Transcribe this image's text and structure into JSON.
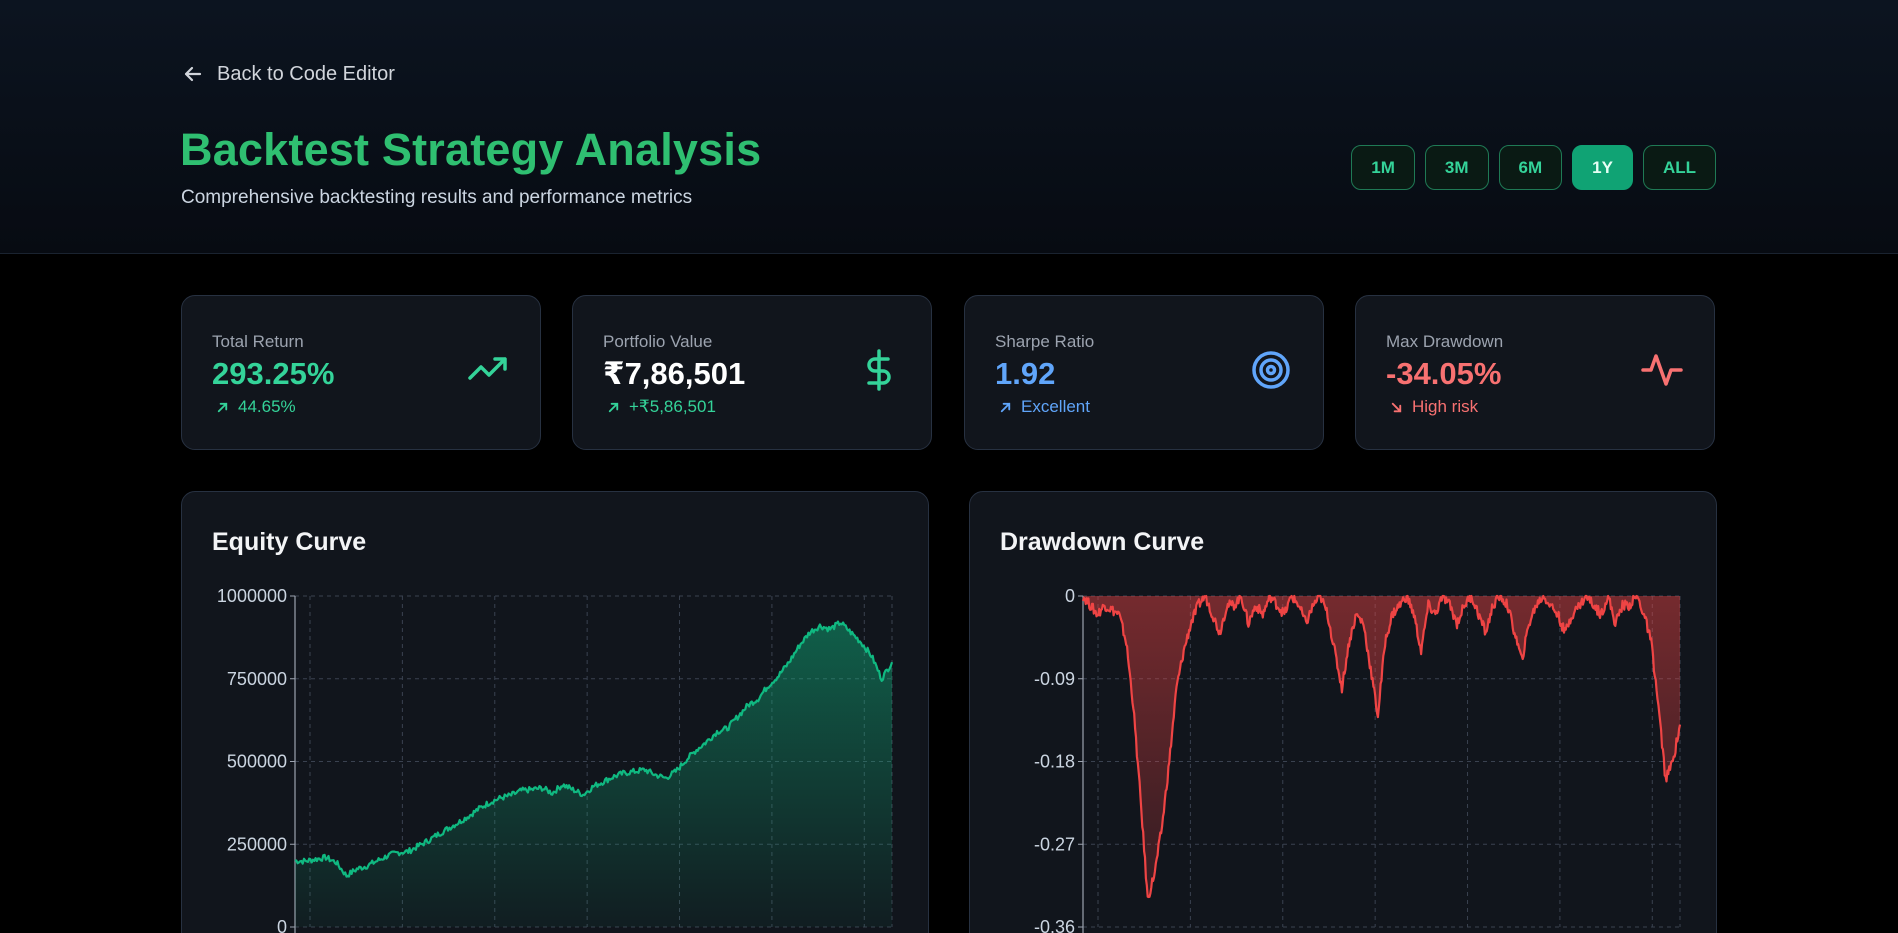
{
  "header": {
    "back_label": "Back to Code Editor",
    "title": "Backtest Strategy Analysis",
    "subtitle": "Comprehensive backtesting results and performance metrics",
    "ranges": [
      "1M",
      "3M",
      "6M",
      "1Y",
      "ALL"
    ],
    "active_range": "1Y"
  },
  "metrics": [
    {
      "label": "Total Return",
      "value": "293.25%",
      "sub": "44.65%",
      "icon": "trending-up-icon",
      "color": "#34d399"
    },
    {
      "label": "Portfolio Value",
      "value": "₹7,86,501",
      "sub": "+₹5,86,501",
      "icon": "dollar-sign-icon",
      "color": "#34d399"
    },
    {
      "label": "Sharpe Ratio",
      "value": "1.92",
      "sub": "Excellent",
      "icon": "target-icon",
      "color": "#60a5fa"
    },
    {
      "label": "Max Drawdown",
      "value": "-34.05%",
      "sub": "High risk",
      "icon": "activity-icon",
      "color": "#f87171"
    }
  ],
  "chart_data": [
    {
      "type": "area",
      "title": "Equity Curve",
      "ylim": [
        0,
        1000000
      ],
      "yticks": [
        "1000000",
        "750000",
        "500000",
        "250000",
        "0"
      ],
      "grid": true,
      "color": "#10b981",
      "series": [
        {
          "values": [
            200000,
            199000,
            205000,
            210000,
            195000,
            155000,
            175000,
            185000,
            200000,
            215000,
            225000,
            228000,
            245000,
            262000,
            282000,
            300000,
            318000,
            338000,
            360000,
            378000,
            390000,
            398000,
            412000,
            415000,
            420000,
            405000,
            430000,
            415000,
            400000,
            425000,
            440000,
            455000,
            465000,
            470000,
            475000,
            460000,
            450000,
            470000,
            505000,
            535000,
            560000,
            590000,
            600000,
            635000,
            670000,
            690000,
            730000,
            760000,
            800000,
            850000,
            890000,
            910000,
            900000,
            920000,
            890000,
            860000,
            820000,
            750000,
            800000
          ]
        }
      ]
    },
    {
      "type": "area",
      "title": "Drawdown Curve",
      "ylim": [
        -0.36,
        0
      ],
      "yticks": [
        "0",
        "-0.09",
        "-0.18",
        "-0.27",
        "-0.36"
      ],
      "grid": true,
      "color": "#ef4444",
      "series": [
        {
          "values": [
            0,
            -0.01,
            -0.02,
            -0.01,
            -0.015,
            -0.02,
            -0.05,
            -0.12,
            -0.22,
            -0.33,
            -0.3,
            -0.25,
            -0.18,
            -0.1,
            -0.06,
            -0.03,
            -0.01,
            0,
            -0.02,
            -0.04,
            -0.01,
            -0.01,
            0,
            -0.03,
            -0.01,
            -0.02,
            0,
            -0.01,
            -0.02,
            0,
            -0.01,
            -0.03,
            -0.01,
            0,
            -0.02,
            -0.06,
            -0.1,
            -0.05,
            -0.02,
            -0.03,
            -0.08,
            -0.13,
            -0.05,
            -0.02,
            -0.01,
            0,
            -0.02,
            -0.06,
            -0.01,
            -0.02,
            0,
            -0.01,
            -0.03,
            -0.01,
            0,
            -0.02,
            -0.04,
            -0.01,
            0,
            -0.01,
            -0.04,
            -0.07,
            -0.03,
            -0.01,
            0,
            -0.01,
            -0.02,
            -0.04,
            -0.02,
            -0.01,
            0,
            -0.01,
            -0.02,
            0,
            -0.03,
            -0.01,
            -0.01,
            0,
            -0.02,
            -0.05,
            -0.12,
            -0.2,
            -0.18,
            -0.14
          ]
        }
      ]
    }
  ]
}
